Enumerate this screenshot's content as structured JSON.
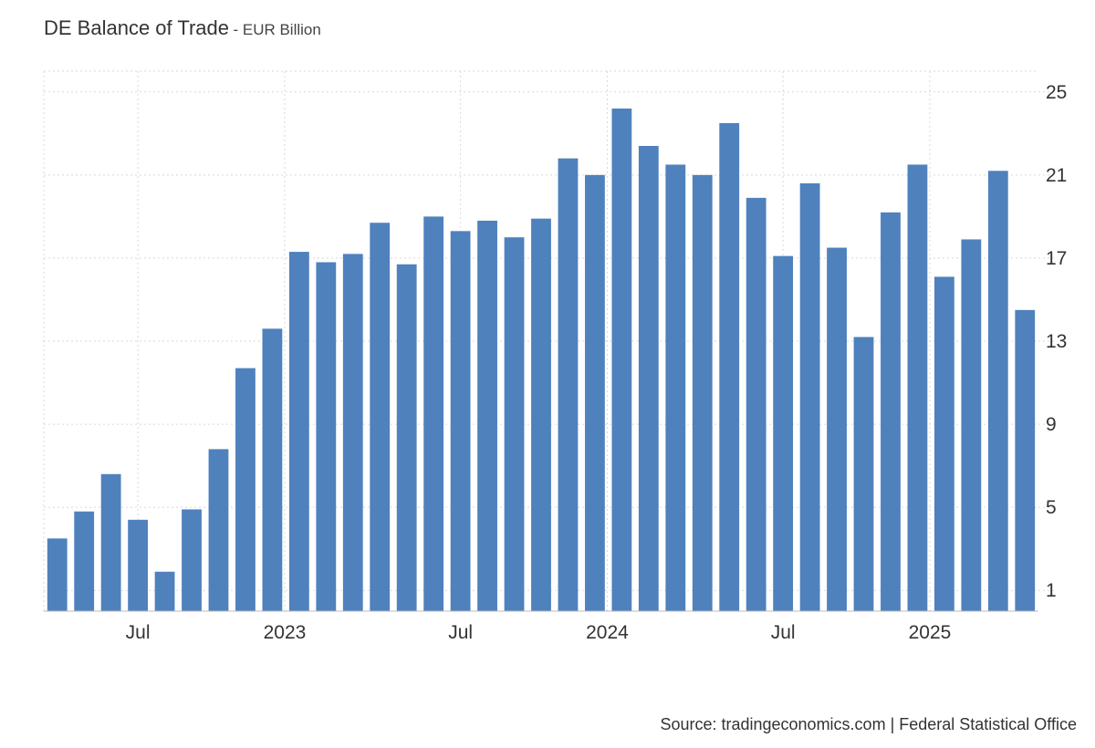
{
  "header": {
    "title": "DE Balance of Trade",
    "subtitle": "- EUR Billion"
  },
  "footer": {
    "source": "Source: tradingeconomics.com | Federal Statistical Office"
  },
  "colors": {
    "bar": "#4f81bd",
    "grid": "#d9d9d9"
  },
  "chart_data": {
    "type": "bar",
    "title": "DE Balance of Trade",
    "subtitle": "EUR Billion",
    "xlabel": "",
    "ylabel": "",
    "ylim": [
      0,
      26
    ],
    "yticks": [
      1,
      5,
      9,
      13,
      17,
      21,
      25
    ],
    "grid": true,
    "x_tick_labels": [
      "Jul",
      "2023",
      "Jul",
      "2024",
      "Jul",
      "2025"
    ],
    "categories": [
      "2022-04",
      "2022-05",
      "2022-06",
      "2022-07",
      "2022-08",
      "2022-09",
      "2022-10",
      "2022-11",
      "2022-12",
      "2023-01",
      "2023-02",
      "2023-03",
      "2023-04",
      "2023-05",
      "2023-06",
      "2023-07",
      "2023-08",
      "2023-09",
      "2023-10",
      "2023-11",
      "2023-12",
      "2024-01",
      "2024-02",
      "2024-03",
      "2024-04",
      "2024-05",
      "2024-06",
      "2024-07",
      "2024-08",
      "2024-09",
      "2024-10",
      "2024-11",
      "2024-12",
      "2025-01",
      "2025-02",
      "2025-03",
      "2025-04"
    ],
    "values": [
      3.5,
      4.8,
      6.6,
      4.4,
      1.9,
      4.9,
      7.8,
      11.7,
      13.6,
      17.3,
      16.8,
      17.2,
      18.7,
      16.7,
      19.0,
      18.3,
      18.8,
      18.0,
      18.9,
      21.8,
      21.0,
      24.2,
      22.4,
      21.5,
      21.0,
      23.5,
      19.9,
      17.1,
      20.6,
      17.5,
      13.2,
      19.2,
      21.5,
      16.1,
      17.9,
      21.2,
      14.5
    ]
  }
}
